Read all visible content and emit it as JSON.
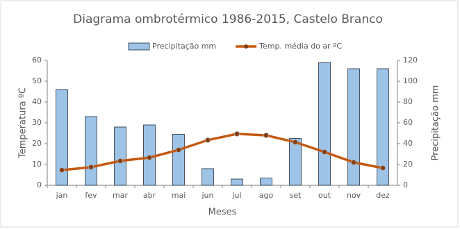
{
  "chart_data": {
    "type": "bar",
    "title": "Diagrama ombrotérmico 1986-2015, Castelo Branco",
    "x_label": "Meses",
    "y_label": "Temperatura ºC",
    "y2_label": "Precipitação mm",
    "categories": [
      "jan",
      "fev",
      "mar",
      "abr",
      "mai",
      "jun",
      "jul",
      "ago",
      "set",
      "out",
      "nov",
      "dez"
    ],
    "series": [
      {
        "name": "Precipitação mm",
        "type": "bar",
        "axis": "y2",
        "color": "#9dc3e6",
        "values": [
          92,
          66,
          56,
          58,
          49,
          16,
          6,
          7,
          45,
          118,
          112,
          112
        ]
      },
      {
        "name": "Temp. média do ar ºC",
        "type": "line",
        "axis": "y",
        "color": "#c55a11",
        "values": [
          7.3,
          8.7,
          11.7,
          13.3,
          17,
          21.7,
          24.7,
          24,
          20.7,
          16,
          11,
          8.3
        ]
      }
    ],
    "ylim": [
      0,
      60
    ],
    "yticks": [
      0,
      10,
      20,
      30,
      40,
      50,
      60
    ],
    "y2lim": [
      0,
      120
    ],
    "y2ticks": [
      0,
      20,
      40,
      60,
      80,
      100,
      120
    ],
    "grid": false,
    "legend": "top"
  }
}
